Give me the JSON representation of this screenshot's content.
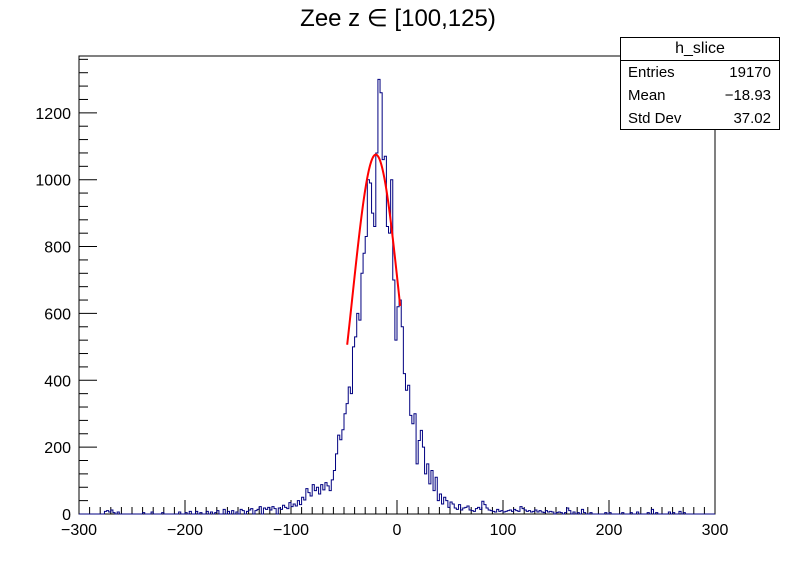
{
  "chart_data": {
    "type": "histogram",
    "title": "Zee z ∈ [100,125)",
    "xlabel": "",
    "ylabel": "",
    "xlim": [
      -300,
      300
    ],
    "ylim": [
      0,
      1370
    ],
    "x_ticks": [
      -300,
      -200,
      -100,
      0,
      100,
      200,
      300
    ],
    "y_ticks": [
      0,
      200,
      400,
      600,
      800,
      1000,
      1200
    ],
    "bin_width": 2,
    "histogram": {
      "name": "h_slice",
      "color": "#000080",
      "bins": [
        [
          -276,
          8
        ],
        [
          -274,
          10
        ],
        [
          -272,
          6
        ],
        [
          -270,
          12
        ],
        [
          -268,
          4
        ],
        [
          -264,
          6
        ],
        [
          -240,
          4
        ],
        [
          -232,
          6
        ],
        [
          -222,
          4
        ],
        [
          -206,
          6
        ],
        [
          -200,
          4
        ],
        [
          -196,
          8
        ],
        [
          -190,
          8
        ],
        [
          -186,
          4
        ],
        [
          -180,
          8
        ],
        [
          -176,
          6
        ],
        [
          -172,
          4
        ],
        [
          -170,
          10
        ],
        [
          -164,
          14
        ],
        [
          -160,
          8
        ],
        [
          -156,
          10
        ],
        [
          -152,
          6
        ],
        [
          -148,
          14
        ],
        [
          -146,
          10
        ],
        [
          -142,
          8
        ],
        [
          -140,
          12
        ],
        [
          -138,
          16
        ],
        [
          -134,
          10
        ],
        [
          -132,
          14
        ],
        [
          -130,
          22
        ],
        [
          -126,
          18
        ],
        [
          -124,
          14
        ],
        [
          -122,
          20
        ],
        [
          -120,
          12
        ],
        [
          -118,
          22
        ],
        [
          -116,
          16
        ],
        [
          -112,
          18
        ],
        [
          -110,
          14
        ],
        [
          -108,
          26
        ],
        [
          -106,
          20
        ],
        [
          -104,
          16
        ],
        [
          -102,
          34
        ],
        [
          -100,
          22
        ],
        [
          -98,
          30
        ],
        [
          -96,
          24
        ],
        [
          -94,
          40
        ],
        [
          -92,
          28
        ],
        [
          -90,
          50
        ],
        [
          -88,
          42
        ],
        [
          -86,
          76
        ],
        [
          -84,
          64
        ],
        [
          -82,
          54
        ],
        [
          -80,
          88
        ],
        [
          -78,
          70
        ],
        [
          -76,
          80
        ],
        [
          -74,
          60
        ],
        [
          -72,
          88
        ],
        [
          -70,
          72
        ],
        [
          -68,
          94
        ],
        [
          -66,
          84
        ],
        [
          -64,
          70
        ],
        [
          -62,
          102
        ],
        [
          -60,
          130
        ],
        [
          -58,
          180
        ],
        [
          -56,
          236
        ],
        [
          -54,
          222
        ],
        [
          -52,
          252
        ],
        [
          -50,
          300
        ],
        [
          -48,
          330
        ],
        [
          -46,
          380
        ],
        [
          -44,
          360
        ],
        [
          -42,
          500
        ],
        [
          -40,
          530
        ],
        [
          -38,
          600
        ],
        [
          -36,
          580
        ],
        [
          -34,
          720
        ],
        [
          -32,
          780
        ],
        [
          -30,
          830
        ],
        [
          -28,
          1000
        ],
        [
          -26,
          990
        ],
        [
          -24,
          900
        ],
        [
          -22,
          860
        ],
        [
          -20,
          1080
        ],
        [
          -18,
          1300
        ],
        [
          -16,
          1260
        ],
        [
          -14,
          1060
        ],
        [
          -12,
          1070
        ],
        [
          -10,
          860
        ],
        [
          -8,
          840
        ],
        [
          -6,
          1000
        ],
        [
          -4,
          700
        ],
        [
          -2,
          520
        ],
        [
          0,
          620
        ],
        [
          2,
          640
        ],
        [
          4,
          560
        ],
        [
          6,
          420
        ],
        [
          8,
          370
        ],
        [
          10,
          385
        ],
        [
          12,
          295
        ],
        [
          14,
          270
        ],
        [
          16,
          300
        ],
        [
          18,
          150
        ],
        [
          20,
          220
        ],
        [
          22,
          250
        ],
        [
          24,
          200
        ],
        [
          26,
          120
        ],
        [
          28,
          150
        ],
        [
          30,
          90
        ],
        [
          32,
          130
        ],
        [
          34,
          70
        ],
        [
          36,
          110
        ],
        [
          38,
          40
        ],
        [
          40,
          60
        ],
        [
          42,
          30
        ],
        [
          44,
          50
        ],
        [
          46,
          40
        ],
        [
          48,
          20
        ],
        [
          50,
          36
        ],
        [
          52,
          30
        ],
        [
          54,
          18
        ],
        [
          56,
          14
        ],
        [
          58,
          28
        ],
        [
          60,
          12
        ],
        [
          62,
          18
        ],
        [
          64,
          20
        ],
        [
          66,
          24
        ],
        [
          68,
          12
        ],
        [
          70,
          10
        ],
        [
          72,
          8
        ],
        [
          74,
          16
        ],
        [
          76,
          20
        ],
        [
          78,
          14
        ],
        [
          80,
          38
        ],
        [
          82,
          28
        ],
        [
          84,
          18
        ],
        [
          86,
          12
        ],
        [
          88,
          10
        ],
        [
          90,
          8
        ],
        [
          92,
          6
        ],
        [
          94,
          14
        ],
        [
          96,
          8
        ],
        [
          98,
          10
        ],
        [
          100,
          6
        ],
        [
          102,
          8
        ],
        [
          104,
          10
        ],
        [
          106,
          12
        ],
        [
          108,
          8
        ],
        [
          110,
          14
        ],
        [
          112,
          10
        ],
        [
          114,
          8
        ],
        [
          116,
          22
        ],
        [
          118,
          16
        ],
        [
          120,
          12
        ],
        [
          122,
          8
        ],
        [
          124,
          10
        ],
        [
          126,
          6
        ],
        [
          128,
          8
        ],
        [
          130,
          12
        ],
        [
          132,
          6
        ],
        [
          134,
          10
        ],
        [
          136,
          6
        ],
        [
          138,
          4
        ],
        [
          140,
          10
        ],
        [
          142,
          6
        ],
        [
          144,
          8
        ],
        [
          146,
          6
        ],
        [
          150,
          4
        ],
        [
          152,
          6
        ],
        [
          154,
          4
        ],
        [
          158,
          4
        ],
        [
          160,
          18
        ],
        [
          162,
          10
        ],
        [
          166,
          6
        ],
        [
          170,
          4
        ],
        [
          174,
          14
        ],
        [
          176,
          4
        ],
        [
          182,
          4
        ],
        [
          196,
          4
        ],
        [
          200,
          4
        ],
        [
          212,
          4
        ],
        [
          220,
          4
        ],
        [
          226,
          6
        ],
        [
          236,
          4
        ],
        [
          240,
          14
        ],
        [
          244,
          4
        ],
        [
          256,
          6
        ],
        [
          260,
          4
        ],
        [
          266,
          8
        ],
        [
          270,
          4
        ]
      ]
    },
    "fit": {
      "color": "#ff0000",
      "type": "gaussian",
      "constant": 1075,
      "mean": -20,
      "sigma": 22,
      "range": [
        -47,
        3
      ]
    },
    "stats": {
      "name": "h_slice",
      "rows": [
        {
          "label": "Entries",
          "value": "19170"
        },
        {
          "label": "Mean",
          "value": "−18.93"
        },
        {
          "label": "Std Dev",
          "value": "37.02"
        }
      ]
    }
  }
}
